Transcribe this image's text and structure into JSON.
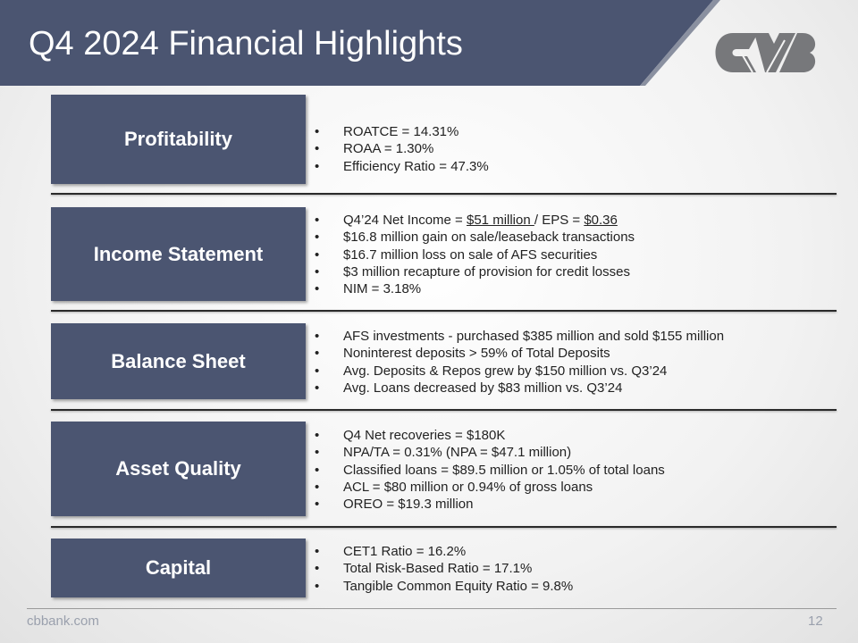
{
  "title": "Q4 2024 Financial Highlights",
  "logo_text": "CVB",
  "colors": {
    "header": "#4b5571",
    "box": "#4b5571",
    "logo": "#77787b"
  },
  "sections": [
    {
      "label": "Profitability",
      "bullets": [
        "ROATCE = 14.31%",
        "ROAA = 1.30%",
        "Efficiency Ratio = 47.3%"
      ]
    },
    {
      "label": "Income Statement",
      "net_income_prefix": "Q4’24 Net Income = ",
      "net_income": "$51 million ",
      "eps_prefix": "/ EPS = ",
      "eps": "$0.36",
      "bullets": [
        "$16.8 million gain on sale/leaseback transactions",
        "$16.7 million loss on sale of AFS securities",
        "$3 million recapture of provision for credit losses",
        "NIM = 3.18%"
      ]
    },
    {
      "label": "Balance Sheet",
      "bullets": [
        "AFS investments - purchased $385 million and sold $155 million",
        "Noninterest deposits > 59% of Total Deposits",
        "Avg. Deposits & Repos grew by $150 million vs. Q3’24",
        "Avg. Loans  decreased by $83 million vs. Q3’24"
      ]
    },
    {
      "label": "Asset Quality",
      "bullets": [
        "Q4 Net recoveries = $180K",
        "NPA/TA = 0.31% (NPA = $47.1 million)",
        "Classified loans = $89.5 million or 1.05% of total loans",
        "ACL = $80 million or 0.94% of gross loans",
        "OREO = $19.3 million"
      ]
    },
    {
      "label": "Capital",
      "bullets": [
        "CET1 Ratio = 16.2%",
        "Total Risk-Based Ratio = 17.1%",
        "Tangible Common Equity Ratio = 9.8%"
      ]
    }
  ],
  "footer": {
    "site": "cbbank.com",
    "page": "12"
  }
}
